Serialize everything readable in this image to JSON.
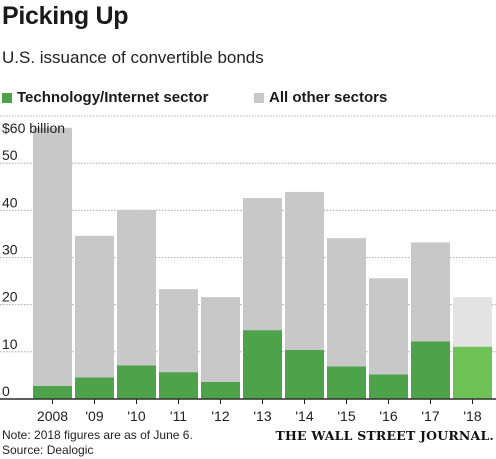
{
  "title": "Picking Up",
  "subtitle": "U.S. issuance of convertible bonds",
  "legend": [
    {
      "label": "Technology/Internet sector",
      "color": "#4ea24a"
    },
    {
      "label": "All other sectors",
      "color": "#c8c8c8"
    }
  ],
  "note": "Note: 2018 figures are as of June 6.",
  "source": "Source: Dealogic",
  "logo": "THE WALL STREET JOURNAL.",
  "chart_data": {
    "type": "bar",
    "stacked": true,
    "categories": [
      "2008",
      "'09",
      "'10",
      "'11",
      "'12",
      "'13",
      "'14",
      "'15",
      "'16",
      "'17",
      "'18"
    ],
    "series": [
      {
        "name": "Technology/Internet sector",
        "values": [
          2.8,
          4.6,
          7.1,
          5.7,
          3.6,
          14.6,
          10.4,
          6.9,
          5.2,
          12.2,
          11.1
        ],
        "color": "#4ea24a",
        "highlight_color": "#6fc256"
      },
      {
        "name": "All other sectors",
        "values": [
          54.7,
          30.0,
          33.0,
          17.6,
          18.0,
          28.0,
          33.5,
          27.2,
          20.4,
          21.0,
          10.5
        ],
        "color": "#c8c8c8",
        "highlight_color": "#e3e3e3"
      }
    ],
    "highlight_category": "'18",
    "yticks": [
      0,
      10,
      20,
      30,
      40,
      50
    ],
    "top_tick_label": "$60 billion",
    "ylim": [
      0,
      60
    ],
    "grid": true,
    "legend_position": "top"
  }
}
